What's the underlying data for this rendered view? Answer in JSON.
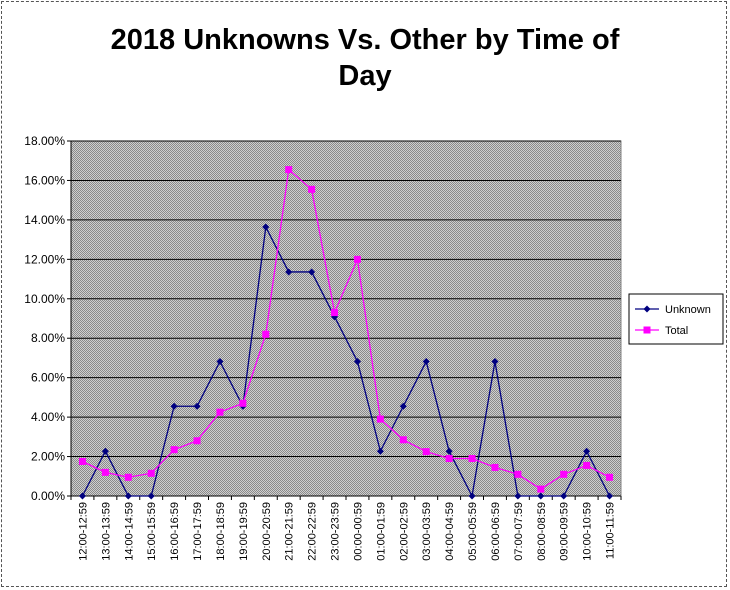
{
  "chart_data": {
    "type": "line",
    "title_line1": "2018 Unknowns Vs. Other by Time of",
    "title_line2": "Day",
    "categories": [
      "12:00-12:59",
      "13:00-13:59",
      "14:00-14:59",
      "15:00-15:59",
      "16:00-16:59",
      "17:00-17:59",
      "18:00-18:59",
      "19:00-19:59",
      "20:00-20:59",
      "21:00-21:59",
      "22:00-22:59",
      "23:00-23:59",
      "00:00-00:59",
      "01:00-01:59",
      "02:00-02:59",
      "03:00-03:59",
      "04:00-04:59",
      "05:00-05:59",
      "06:00-06:59",
      "07:00-07:59",
      "08:00-08:59",
      "09:00-09:59",
      "10:00-10:59",
      "11:00-11:59"
    ],
    "ylim": [
      0,
      18
    ],
    "yticks": [
      0,
      2,
      4,
      6,
      8,
      10,
      12,
      14,
      16,
      18
    ],
    "ytick_labels": [
      "0.00%",
      "2.00%",
      "4.00%",
      "6.00%",
      "8.00%",
      "10.00%",
      "12.00%",
      "14.00%",
      "16.00%",
      "18.00%"
    ],
    "series": [
      {
        "name": "Unknown",
        "color": "#000080",
        "marker": "diamond",
        "values": [
          0,
          2.27,
          0,
          0,
          4.55,
          4.55,
          6.82,
          4.55,
          13.64,
          11.36,
          11.36,
          9.09,
          6.82,
          2.27,
          4.55,
          6.82,
          2.27,
          0,
          6.82,
          0,
          0,
          0,
          2.27,
          0
        ]
      },
      {
        "name": "Total",
        "color": "#FF00FF",
        "marker": "square",
        "values": [
          1.75,
          1.2,
          0.95,
          1.15,
          2.35,
          2.8,
          4.25,
          4.7,
          8.2,
          16.55,
          15.55,
          9.3,
          12.0,
          3.9,
          2.85,
          2.25,
          1.9,
          1.9,
          1.45,
          1.1,
          0.35,
          1.1,
          1.55,
          0.95
        ]
      }
    ],
    "grid": true,
    "legend_position": "right"
  }
}
